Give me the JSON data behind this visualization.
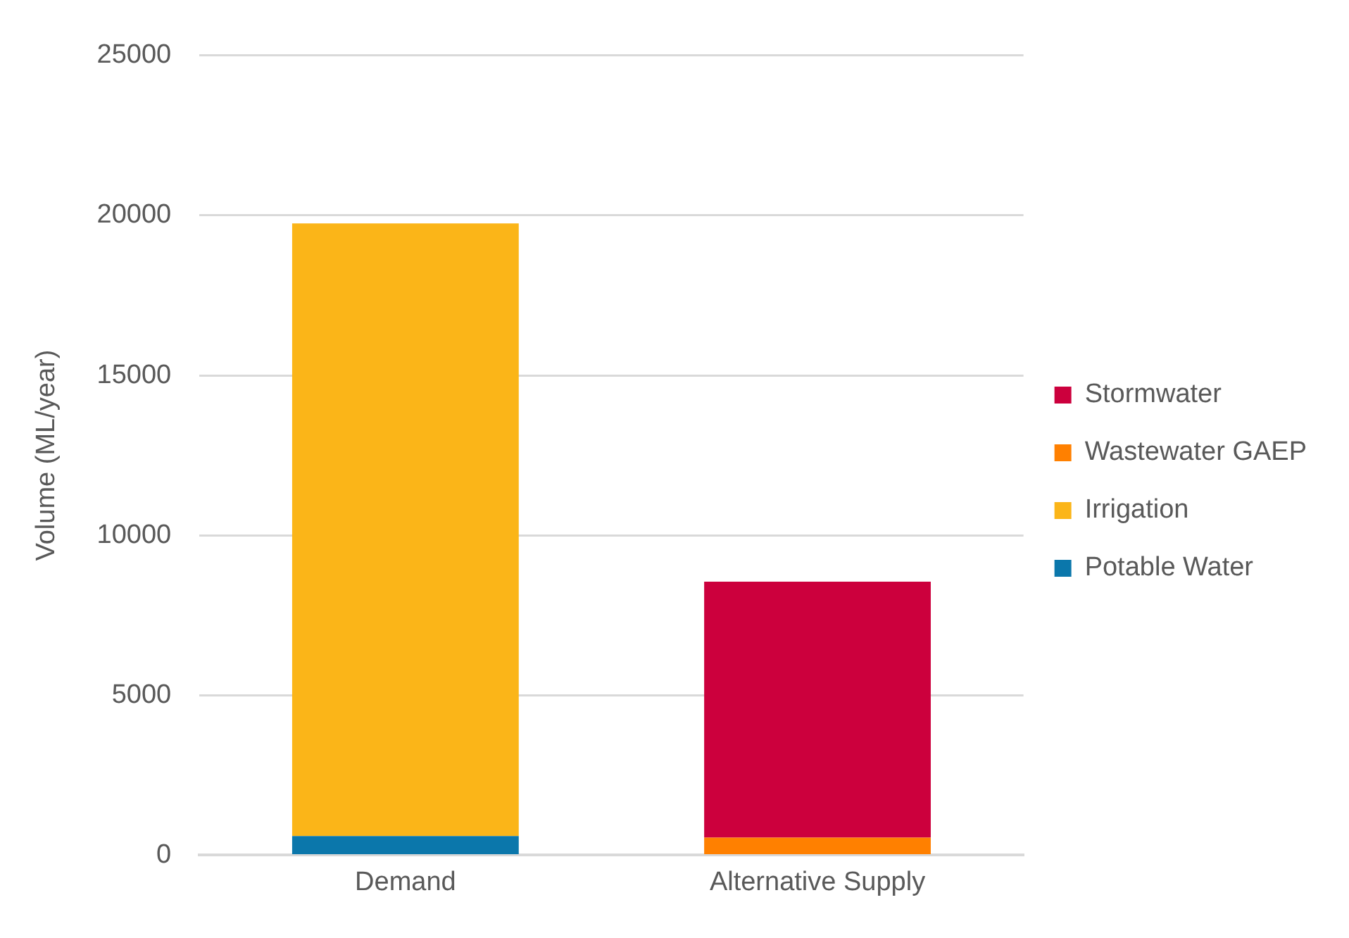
{
  "chart_data": {
    "type": "bar",
    "stacked": true,
    "ylabel": "Volume (ML/year)",
    "categories": [
      "Demand",
      "Alternative Supply"
    ],
    "series": [
      {
        "name": "Potable Water",
        "color": "#0b77ab",
        "values": [
          600,
          null
        ]
      },
      {
        "name": "Irrigation",
        "color": "#fbb518",
        "values": [
          19150,
          null
        ]
      },
      {
        "name": "Wastewater GAEP",
        "color": "#ff8000",
        "values": [
          null,
          550
        ]
      },
      {
        "name": "Stormwater",
        "color": "#cc003d",
        "values": [
          null,
          8000
        ]
      }
    ],
    "ylim": [
      0,
      25000
    ],
    "yticks": [
      0,
      5000,
      10000,
      15000,
      20000,
      25000
    ],
    "grid": "y",
    "legend": "right"
  }
}
